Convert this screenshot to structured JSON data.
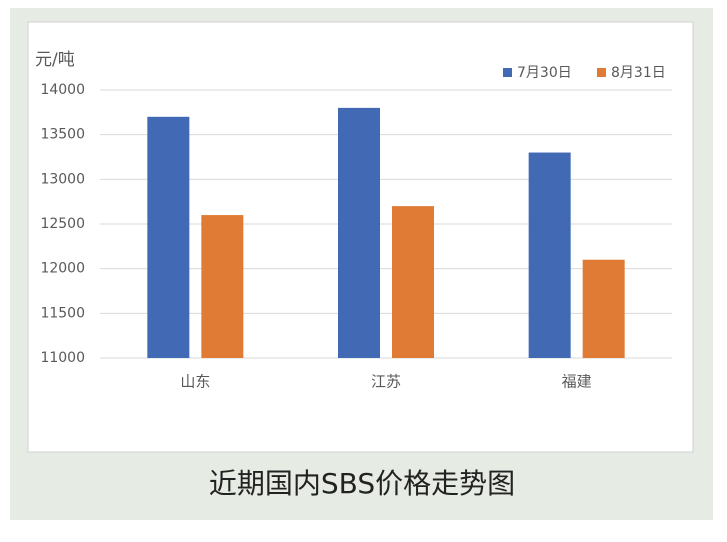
{
  "chart_data": {
    "type": "bar",
    "title": "近期国内SBS价格走势图",
    "y_unit": "元/吨",
    "categories": [
      "山东",
      "江苏",
      "福建"
    ],
    "series": [
      {
        "name": "7月30日",
        "color": "#4169b4",
        "values": [
          13700,
          13800,
          13300
        ]
      },
      {
        "name": "8月31日",
        "color": "#e07b35",
        "values": [
          12600,
          12700,
          12100
        ]
      }
    ],
    "ylim": [
      11000,
      14000
    ],
    "yticks": [
      11000,
      11500,
      12000,
      12500,
      13000,
      13500,
      14000
    ],
    "grid": true,
    "legend": "top-right"
  }
}
